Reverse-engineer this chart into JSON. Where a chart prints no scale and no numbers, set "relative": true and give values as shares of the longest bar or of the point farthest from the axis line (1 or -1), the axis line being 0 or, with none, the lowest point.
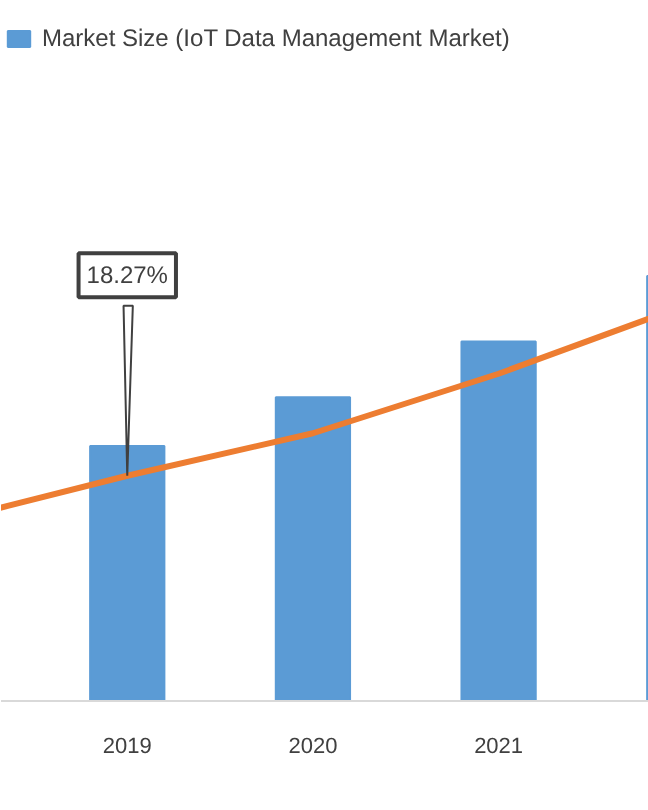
{
  "chart_data": {
    "type": "bar",
    "relative": true,
    "categories": [
      null,
      "2019",
      "2020",
      "2021",
      null
    ],
    "series": [
      {
        "name": "Market Size (IoT Data Management Market)",
        "color": "#5b9bd5",
        "values": [
          null,
          0.6,
          0.715,
          0.846,
          1
        ]
      },
      {
        "type": "line",
        "color": "#ed7d31",
        "values": [
          0.42,
          0.53,
          0.63,
          0.77,
          0.93
        ]
      }
    ],
    "annotations": [
      {
        "text": "18.27%",
        "x": "2019",
        "y": 0.53
      }
    ],
    "grid": false,
    "legend": "top left"
  }
}
